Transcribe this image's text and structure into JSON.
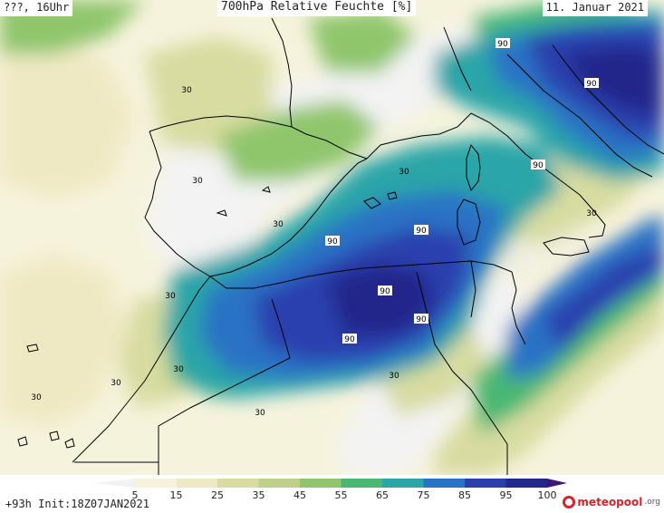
{
  "header": {
    "left": "???, 16Uhr",
    "title": "700hPa Relative Feuchte [%]",
    "date": "11. Januar 2021"
  },
  "footer": {
    "init": "+93h Init:18Z07JAN2021",
    "brand_name": "meteopool",
    "brand_tld": ".org"
  },
  "legend": {
    "ticks": [
      "5",
      "15",
      "25",
      "35",
      "45",
      "55",
      "65",
      "75",
      "85",
      "95",
      "100"
    ],
    "colors": [
      "#f2f2f2",
      "#f6f3dc",
      "#efe9c3",
      "#d8dca0",
      "#bfd08a",
      "#8fc66c",
      "#48b873",
      "#2aa5a8",
      "#2a72c5",
      "#2a3fae",
      "#23288a",
      "#3b1877"
    ]
  },
  "contour_labels": [
    {
      "text": "30",
      "kind": "30"
    },
    {
      "text": "30",
      "kind": "30"
    },
    {
      "text": "30",
      "kind": "30"
    },
    {
      "text": "30",
      "kind": "30"
    },
    {
      "text": "30",
      "kind": "30"
    },
    {
      "text": "30",
      "kind": "30"
    },
    {
      "text": "30",
      "kind": "30"
    },
    {
      "text": "30",
      "kind": "30"
    },
    {
      "text": "30",
      "kind": "30"
    },
    {
      "text": "30",
      "kind": "30"
    },
    {
      "text": "30",
      "kind": "30"
    },
    {
      "text": "90",
      "kind": "90"
    },
    {
      "text": "90",
      "kind": "90"
    },
    {
      "text": "90",
      "kind": "90"
    },
    {
      "text": "90",
      "kind": "90"
    },
    {
      "text": "90",
      "kind": "90"
    },
    {
      "text": "90",
      "kind": "90"
    },
    {
      "text": "90",
      "kind": "90"
    },
    {
      "text": "90",
      "kind": "90"
    }
  ]
}
